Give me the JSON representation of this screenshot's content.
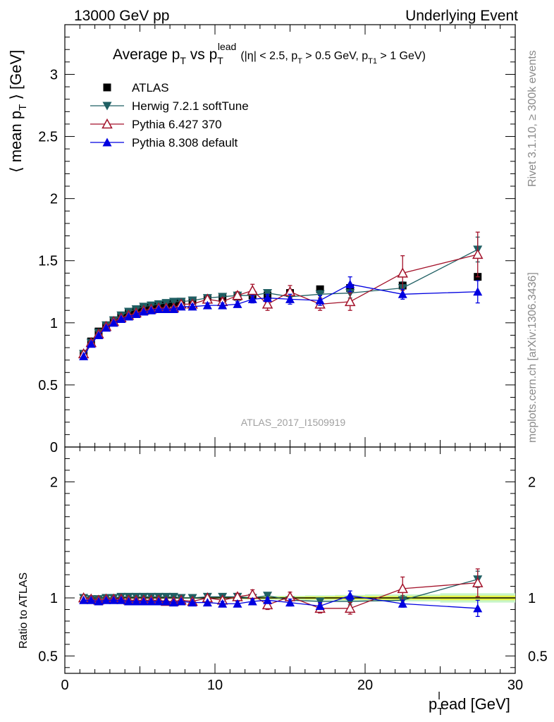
{
  "header": {
    "left": "13000 GeV pp",
    "right": "Underlying Event"
  },
  "side_labels": {
    "rivet": "Rivet 3.1.10, ≥ 300k events",
    "mcplots": "mcplots.cern.ch [arXiv:1306.3436]"
  },
  "watermark": "ATLAS_2017_I1509919",
  "colors": {
    "atlas": "#000000",
    "herwig": "#1f5f63",
    "pythia6": "#a3122a",
    "pythia8": "#0000e0",
    "band_inner": "#e6f542",
    "band_outer": "#c8f5c8"
  },
  "chart_data": [
    {
      "type": "scatter",
      "panel": "main",
      "title_parts": {
        "a": "Average p",
        "a_sub": "T",
        "b": " vs p",
        "b_sub": "T",
        "b_sup": "lead",
        "cuts1": "(|η| < 2.5, p",
        "cuts1_sub": "T",
        "cuts2": " > 0.5 GeV, p",
        "cuts2_sub": "T1",
        "cuts3": " > 1 GeV)"
      },
      "ylabel_parts": {
        "a": "⟨ mean p",
        "a_sub": "T",
        "b": " ⟩ [GeV]"
      },
      "xlim": [
        0,
        30
      ],
      "ylim": [
        0,
        3.4
      ],
      "yticks": [
        "0",
        "0.5",
        "1",
        "1.5",
        "2",
        "2.5",
        "3"
      ],
      "ytick_values": [
        0,
        0.5,
        1,
        1.5,
        2,
        2.5,
        3
      ],
      "legend_position": "top-left",
      "series": [
        {
          "name": "ATLAS",
          "marker": "square",
          "x": [
            1.25,
            1.75,
            2.25,
            2.75,
            3.25,
            3.75,
            4.25,
            4.75,
            5.25,
            5.75,
            6.25,
            6.75,
            7.25,
            7.75,
            8.5,
            9.5,
            10.5,
            11.5,
            12.5,
            13.5,
            15,
            17,
            19,
            22.5,
            27.5
          ],
          "y": [
            0.75,
            0.85,
            0.93,
            0.98,
            1.02,
            1.05,
            1.08,
            1.1,
            1.12,
            1.13,
            1.14,
            1.15,
            1.16,
            1.17,
            1.18,
            1.19,
            1.2,
            1.21,
            1.22,
            1.22,
            1.24,
            1.27,
            1.28,
            1.3,
            1.37
          ]
        },
        {
          "name": "Herwig 7.2.1 softTune",
          "marker": "triangle-down",
          "x": [
            1.25,
            1.75,
            2.25,
            2.75,
            3.25,
            3.75,
            4.25,
            4.75,
            5.25,
            5.75,
            6.25,
            6.75,
            7.25,
            7.75,
            8.5,
            9.5,
            10.5,
            11.5,
            12.5,
            13.5,
            15,
            17,
            19,
            22.5,
            27.5
          ],
          "y": [
            0.75,
            0.84,
            0.92,
            0.98,
            1.02,
            1.06,
            1.09,
            1.11,
            1.13,
            1.14,
            1.15,
            1.16,
            1.17,
            1.17,
            1.18,
            1.2,
            1.21,
            1.22,
            1.22,
            1.24,
            1.21,
            1.23,
            1.24,
            1.28,
            1.59
          ],
          "err": [
            0.01,
            0.01,
            0.01,
            0.01,
            0.01,
            0.01,
            0.01,
            0.01,
            0.01,
            0.01,
            0.01,
            0.01,
            0.01,
            0.01,
            0.01,
            0.01,
            0.01,
            0.02,
            0.02,
            0.02,
            0.03,
            0.03,
            0.04,
            0.05,
            0.1
          ]
        },
        {
          "name": "Pythia 6.427 370",
          "marker": "triangle-up-open",
          "x": [
            1.25,
            1.75,
            2.25,
            2.75,
            3.25,
            3.75,
            4.25,
            4.75,
            5.25,
            5.75,
            6.25,
            6.75,
            7.25,
            7.75,
            8.5,
            9.5,
            10.5,
            11.5,
            12.5,
            13.5,
            15,
            17,
            19,
            22.5,
            27.5
          ],
          "y": [
            0.75,
            0.84,
            0.91,
            0.97,
            1.01,
            1.04,
            1.06,
            1.08,
            1.1,
            1.11,
            1.12,
            1.12,
            1.12,
            1.15,
            1.15,
            1.19,
            1.17,
            1.22,
            1.26,
            1.15,
            1.25,
            1.15,
            1.17,
            1.4,
            1.55
          ],
          "err": [
            0.01,
            0.01,
            0.01,
            0.01,
            0.01,
            0.01,
            0.01,
            0.01,
            0.01,
            0.01,
            0.01,
            0.01,
            0.01,
            0.02,
            0.02,
            0.02,
            0.03,
            0.03,
            0.05,
            0.05,
            0.05,
            0.05,
            0.07,
            0.14,
            0.18
          ]
        },
        {
          "name": "Pythia 8.308 default",
          "marker": "triangle-up",
          "x": [
            1.25,
            1.75,
            2.25,
            2.75,
            3.25,
            3.75,
            4.25,
            4.75,
            5.25,
            5.75,
            6.25,
            6.75,
            7.25,
            7.75,
            8.5,
            9.5,
            10.5,
            11.5,
            12.5,
            13.5,
            15,
            17,
            19,
            22.5,
            27.5
          ],
          "y": [
            0.73,
            0.83,
            0.9,
            0.96,
            1.0,
            1.03,
            1.05,
            1.07,
            1.09,
            1.1,
            1.11,
            1.11,
            1.11,
            1.13,
            1.13,
            1.14,
            1.14,
            1.15,
            1.19,
            1.2,
            1.19,
            1.18,
            1.31,
            1.23,
            1.25
          ],
          "err": [
            0.01,
            0.01,
            0.01,
            0.01,
            0.01,
            0.01,
            0.01,
            0.01,
            0.01,
            0.01,
            0.01,
            0.01,
            0.01,
            0.01,
            0.02,
            0.02,
            0.02,
            0.02,
            0.03,
            0.03,
            0.04,
            0.04,
            0.06,
            0.04,
            0.09
          ]
        }
      ]
    },
    {
      "type": "scatter",
      "panel": "ratio",
      "ylabel": "Ratio to ATLAS",
      "xlabel_parts": {
        "a": "p",
        "a_sub": "T",
        "a_sup": "l",
        "b": "ead [GeV]"
      },
      "xlim": [
        0,
        30
      ],
      "ylim": [
        0.35,
        2.3
      ],
      "xticks": [
        "0",
        "10",
        "20",
        "30"
      ],
      "xtick_values": [
        0,
        10,
        20,
        30
      ],
      "yticks": [
        "0.5",
        "1",
        "2"
      ],
      "ytick_values": [
        0.5,
        1,
        2
      ],
      "band": {
        "x": [
          1.0,
          1.5,
          2.0,
          2.5,
          3.0,
          3.5,
          4.0,
          4.5,
          5.0,
          5.5,
          6.0,
          6.5,
          7.0,
          7.5,
          8.0,
          9.0,
          10.0,
          11.0,
          12.0,
          13.0,
          14.0,
          16.0,
          18.0,
          20.0,
          25.0,
          30.0
        ],
        "inner_half_width": [
          0.005,
          0.005,
          0.005,
          0.005,
          0.005,
          0.005,
          0.005,
          0.005,
          0.005,
          0.005,
          0.005,
          0.005,
          0.005,
          0.005,
          0.005,
          0.005,
          0.006,
          0.007,
          0.008,
          0.009,
          0.01,
          0.012,
          0.015,
          0.015,
          0.02
        ],
        "outer_half_width": [
          0.008,
          0.008,
          0.008,
          0.008,
          0.008,
          0.008,
          0.008,
          0.008,
          0.008,
          0.008,
          0.008,
          0.008,
          0.008,
          0.008,
          0.008,
          0.009,
          0.01,
          0.012,
          0.014,
          0.016,
          0.018,
          0.022,
          0.026,
          0.03,
          0.04
        ]
      },
      "series": [
        {
          "name": "Herwig 7.2.1 softTune",
          "x": [
            1.25,
            1.75,
            2.25,
            2.75,
            3.25,
            3.75,
            4.25,
            4.75,
            5.25,
            5.75,
            6.25,
            6.75,
            7.25,
            7.75,
            8.5,
            9.5,
            10.5,
            11.5,
            12.5,
            13.5,
            15,
            17,
            19,
            22.5,
            27.5
          ],
          "y": [
            1.0,
            0.99,
            0.99,
            1.0,
            1.0,
            1.01,
            1.01,
            1.01,
            1.01,
            1.01,
            1.01,
            1.01,
            1.01,
            1.0,
            1.0,
            1.01,
            1.01,
            1.01,
            1.0,
            1.02,
            0.98,
            0.97,
            0.97,
            0.98,
            1.16
          ],
          "err": [
            0.01,
            0.01,
            0.01,
            0.01,
            0.01,
            0.01,
            0.01,
            0.01,
            0.01,
            0.01,
            0.01,
            0.01,
            0.01,
            0.01,
            0.01,
            0.01,
            0.01,
            0.02,
            0.02,
            0.02,
            0.02,
            0.03,
            0.03,
            0.04,
            0.07
          ]
        },
        {
          "name": "Pythia 6.427 370",
          "x": [
            1.25,
            1.75,
            2.25,
            2.75,
            3.25,
            3.75,
            4.25,
            4.75,
            5.25,
            5.75,
            6.25,
            6.75,
            7.25,
            7.75,
            8.5,
            9.5,
            10.5,
            11.5,
            12.5,
            13.5,
            15,
            17,
            19,
            22.5,
            27.5
          ],
          "y": [
            1.0,
            0.99,
            0.98,
            0.99,
            0.99,
            0.99,
            0.98,
            0.98,
            0.98,
            0.98,
            0.98,
            0.97,
            0.97,
            0.98,
            0.97,
            1.0,
            0.98,
            1.01,
            1.03,
            0.94,
            1.01,
            0.91,
            0.91,
            1.08,
            1.13
          ],
          "err": [
            0.01,
            0.01,
            0.01,
            0.01,
            0.01,
            0.01,
            0.01,
            0.01,
            0.01,
            0.01,
            0.01,
            0.01,
            0.01,
            0.01,
            0.02,
            0.02,
            0.02,
            0.03,
            0.04,
            0.04,
            0.04,
            0.04,
            0.05,
            0.1,
            0.12
          ]
        },
        {
          "name": "Pythia 8.308 default",
          "x": [
            1.25,
            1.75,
            2.25,
            2.75,
            3.25,
            3.75,
            4.25,
            4.75,
            5.25,
            5.75,
            6.25,
            6.75,
            7.25,
            7.75,
            8.5,
            9.5,
            10.5,
            11.5,
            12.5,
            13.5,
            15,
            17,
            19,
            22.5,
            27.5
          ],
          "y": [
            0.98,
            0.98,
            0.97,
            0.98,
            0.98,
            0.98,
            0.97,
            0.97,
            0.97,
            0.97,
            0.97,
            0.97,
            0.96,
            0.97,
            0.96,
            0.96,
            0.95,
            0.95,
            0.97,
            0.98,
            0.96,
            0.93,
            1.02,
            0.95,
            0.91
          ],
          "err": [
            0.01,
            0.01,
            0.01,
            0.01,
            0.01,
            0.01,
            0.01,
            0.01,
            0.01,
            0.01,
            0.01,
            0.01,
            0.01,
            0.01,
            0.01,
            0.01,
            0.02,
            0.02,
            0.02,
            0.02,
            0.03,
            0.03,
            0.04,
            0.03,
            0.07
          ]
        }
      ]
    }
  ]
}
